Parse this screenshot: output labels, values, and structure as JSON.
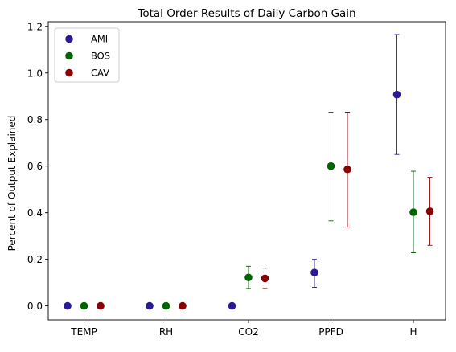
{
  "chart_data": {
    "type": "scatter",
    "title": "Total Order Results of Daily Carbon Gain",
    "xlabel": "",
    "ylabel": "Percent of Output Explained",
    "categories": [
      "TEMP",
      "RH",
      "CO2",
      "PPFD",
      "H"
    ],
    "ylim": [
      -0.06,
      1.22
    ],
    "yticks": [
      0.0,
      0.2,
      0.4,
      0.6,
      0.8,
      1.0,
      1.2
    ],
    "ytick_labels": [
      "0.0",
      "0.2",
      "0.4",
      "0.6",
      "0.8",
      "1.0",
      "1.2"
    ],
    "grid": false,
    "legend_position": "top-left",
    "error_bars": true,
    "series": [
      {
        "name": "AMI",
        "color": "#2a1a96",
        "values": [
          0.0,
          0.0,
          0.0,
          0.143,
          0.907
        ],
        "lower": [
          null,
          null,
          null,
          0.08,
          0.65
        ],
        "upper": [
          null,
          null,
          null,
          0.2,
          1.165
        ]
      },
      {
        "name": "BOS",
        "color": "#006400",
        "values": [
          0.0,
          0.0,
          0.122,
          0.6,
          0.402
        ],
        "lower": [
          null,
          null,
          0.075,
          0.365,
          0.228
        ],
        "upper": [
          null,
          null,
          0.17,
          0.832,
          0.578
        ]
      },
      {
        "name": "CAV",
        "color": "#8b0000",
        "values": [
          0.0,
          0.0,
          0.118,
          0.586,
          0.406
        ],
        "lower": [
          null,
          null,
          0.075,
          0.338,
          0.26
        ],
        "upper": [
          null,
          null,
          0.162,
          0.832,
          0.552
        ]
      }
    ]
  }
}
